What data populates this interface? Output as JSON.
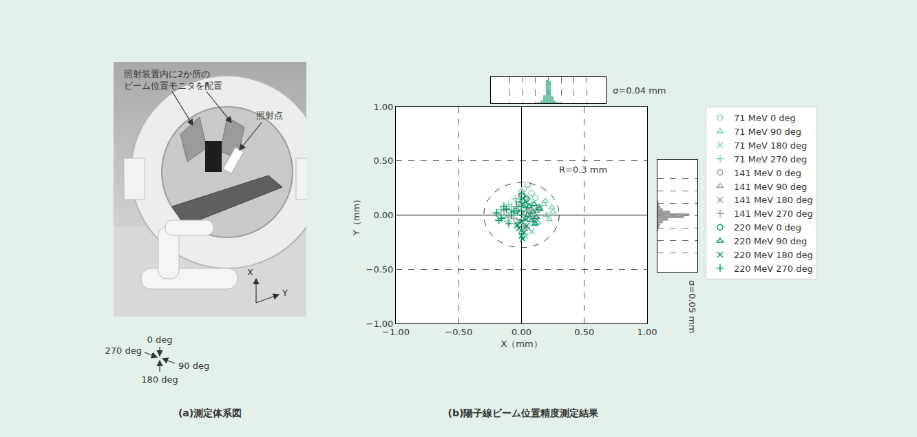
{
  "diagram": {
    "caption": "(a)測定体系図",
    "monitor_note": [
      "照射装置内に2か所の",
      "ビーム位置モニタを配置"
    ],
    "irradiation_point": "照射点",
    "axes": [
      "X",
      "Y"
    ],
    "angles": [
      "0 deg",
      "90 deg",
      "180 deg",
      "270 deg"
    ]
  },
  "chart_data": [
    {
      "type": "scatter",
      "title": "(b)陽子線ビーム位置精度測定結果",
      "xlabel": "X（mm）",
      "ylabel": "Y（mm）",
      "xlim": [
        -1,
        1
      ],
      "ylim": [
        -1,
        1
      ],
      "xticks": [
        {
          "value": -1,
          "label": "−1.00"
        },
        {
          "value": -0.5,
          "label": "−0.50"
        },
        {
          "value": 0,
          "label": "0.00"
        },
        {
          "value": 0.5,
          "label": "0.50"
        },
        {
          "value": 1,
          "label": "1.00"
        }
      ],
      "yticks": [
        {
          "value": -1,
          "label": "−1.00"
        },
        {
          "value": -0.5,
          "label": "−0.50"
        },
        {
          "value": 0,
          "label": "0.00"
        },
        {
          "value": 0.5,
          "label": "0.50"
        },
        {
          "value": 1,
          "label": "1.00"
        }
      ],
      "grid": true,
      "legend": "right",
      "reference_circle": {
        "r": 0.3,
        "label": "R=0.3 mm"
      },
      "series": [
        {
          "name": "71 MeV 0 deg",
          "color": "#7fcfb0",
          "marker": "circle-open",
          "x": [
            0.02,
            0.05,
            0.08,
            0.11,
            -0.02,
            0.0,
            0.06,
            0.1
          ],
          "y": [
            0.24,
            0.28,
            0.2,
            0.16,
            0.12,
            0.21,
            0.13,
            0.06
          ]
        },
        {
          "name": "71 MeV 90 deg",
          "color": "#7fcfb0",
          "marker": "triangle-up-open",
          "x": [
            0.15,
            0.2,
            0.25,
            0.22,
            0.18,
            0.13,
            0.24,
            0.19
          ],
          "y": [
            0.05,
            0.0,
            0.03,
            -0.04,
            0.1,
            -0.07,
            0.07,
            0.13
          ]
        },
        {
          "name": "71 MeV 180 deg",
          "color": "#7fcfb0",
          "marker": "x-thin-open",
          "x": [
            -0.04,
            0.0,
            0.05,
            0.1,
            -0.02,
            0.03,
            0.08,
            0.06
          ],
          "y": [
            -0.1,
            -0.16,
            -0.12,
            -0.08,
            -0.05,
            -0.2,
            -0.15,
            -0.02
          ]
        },
        {
          "name": "71 MeV 270 deg",
          "color": "#7fcfb0",
          "marker": "cross-thin-open",
          "x": [
            -0.16,
            -0.1,
            -0.13,
            -0.08,
            -0.05,
            -0.19,
            -0.11,
            -0.06
          ],
          "y": [
            0.05,
            0.1,
            -0.02,
            0.08,
            0.15,
            0.01,
            -0.06,
            0.03
          ]
        },
        {
          "name": "141 MeV 0 deg",
          "color": "#9e9e9e",
          "marker": "circle-open",
          "x": [
            0.0,
            0.03,
            -0.02,
            0.05,
            0.01,
            0.04
          ],
          "y": [
            0.1,
            0.14,
            0.06,
            0.08,
            0.18,
            0.02
          ]
        },
        {
          "name": "141 MeV 90 deg",
          "color": "#9e9e9e",
          "marker": "triangle-up-open",
          "x": [
            0.08,
            0.12,
            0.1,
            0.14,
            0.06,
            0.11
          ],
          "y": [
            0.0,
            0.04,
            -0.04,
            0.08,
            0.03,
            -0.02
          ]
        },
        {
          "name": "141 MeV 180 deg",
          "color": "#9e9e9e",
          "marker": "x-thin-open",
          "x": [
            -0.02,
            0.02,
            0.0,
            0.04,
            -0.04,
            0.03
          ],
          "y": [
            -0.06,
            -0.1,
            -0.14,
            -0.04,
            -0.09,
            -0.12
          ]
        },
        {
          "name": "141 MeV 270 deg",
          "color": "#9e9e9e",
          "marker": "cross-thin-open",
          "x": [
            -0.08,
            -0.12,
            -0.06,
            -0.1,
            -0.04,
            -0.14
          ],
          "y": [
            0.02,
            0.06,
            -0.03,
            -0.01,
            0.08,
            0.04
          ]
        },
        {
          "name": "220 MeV 0 deg",
          "color": "#009b6b",
          "marker": "circle-open",
          "x": [
            -0.02,
            0.0,
            0.02,
            -0.04,
            0.01,
            0.03,
            -0.01,
            0.04
          ],
          "y": [
            0.1,
            0.18,
            0.06,
            0.04,
            0.13,
            0.09,
            0.02,
            0.15
          ]
        },
        {
          "name": "220 MeV 90 deg",
          "color": "#009b6b",
          "marker": "triangle-up-open",
          "x": [
            0.05,
            0.09,
            0.12,
            0.08,
            0.14,
            0.06,
            0.1,
            0.11
          ],
          "y": [
            0.0,
            0.03,
            -0.02,
            -0.05,
            0.06,
            0.08,
            0.1,
            -0.08
          ]
        },
        {
          "name": "220 MeV 180 deg",
          "color": "#009b6b",
          "marker": "x-thin-open",
          "x": [
            0.0,
            -0.02,
            0.02,
            0.01,
            -0.03,
            0.03,
            0.0,
            0.04
          ],
          "y": [
            -0.06,
            -0.12,
            -0.16,
            -0.22,
            -0.09,
            -0.04,
            -0.19,
            -0.1
          ]
        },
        {
          "name": "220 MeV 270 deg",
          "color": "#009b6b",
          "marker": "cross-thin-open",
          "x": [
            -0.08,
            -0.12,
            -0.16,
            -0.2,
            -0.1,
            -0.14,
            -0.06,
            -0.18
          ],
          "y": [
            0.0,
            0.05,
            -0.03,
            0.02,
            -0.08,
            0.08,
            0.04,
            -0.05
          ]
        }
      ]
    },
    {
      "type": "histogram",
      "color": "#6cc3a0",
      "bins": [
        -0.1,
        -0.08,
        -0.06,
        -0.04,
        -0.02,
        0.0,
        0.02,
        0.04,
        0.06,
        0.08,
        0.1
      ],
      "counts": [
        1,
        2,
        5,
        14,
        40,
        38,
        12,
        4,
        2,
        1
      ],
      "xlim": [
        -0.45,
        0.45
      ],
      "xticks": [
        -0.3,
        -0.2,
        -0.1,
        0,
        0.1,
        0.2,
        0.3
      ],
      "ylim": [
        0,
        45
      ],
      "grid": true,
      "tick_labels": false,
      "annotations": [
        "σ=0.04 mm"
      ]
    },
    {
      "type": "histogram",
      "orientation": "horizontal",
      "color": "#9a9a9a",
      "bins": [
        -0.12,
        -0.1,
        -0.08,
        -0.06,
        -0.04,
        -0.02,
        0.0,
        0.02,
        0.04,
        0.06,
        0.08,
        0.1,
        0.12
      ],
      "counts": [
        1,
        2,
        3,
        6,
        12,
        30,
        36,
        14,
        6,
        3,
        2,
        1
      ],
      "ylim": [
        -0.45,
        0.45
      ],
      "yticks": [
        -0.3,
        -0.2,
        -0.1,
        0,
        0.1,
        0.2,
        0.3
      ],
      "xlim": [
        0,
        45
      ],
      "grid": true,
      "tick_labels": false,
      "annotations": [
        "σ=0.05 mm"
      ]
    }
  ]
}
